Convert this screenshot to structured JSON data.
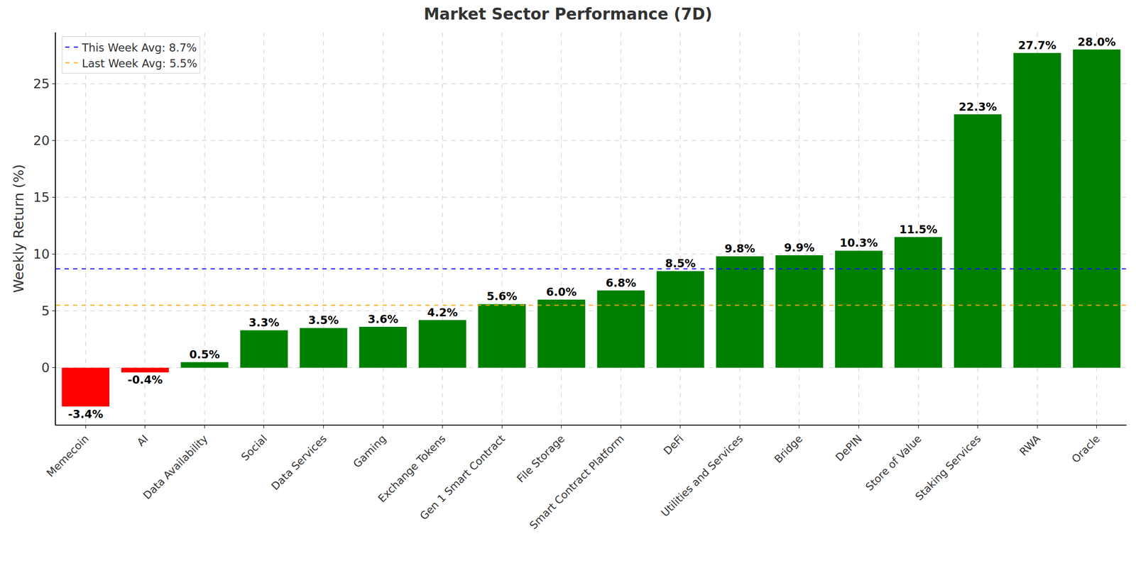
{
  "chart_data": {
    "type": "bar",
    "title": "Market Sector Performance (7D)",
    "y_label": "Weekly Return (%)",
    "categories": [
      "Memecoin",
      "AI",
      "Data Availability",
      "Social",
      "Data Services",
      "Gaming",
      "Exchange Tokens",
      "Gen 1 Smart Contract",
      "File Storage",
      "Smart Contract Platform",
      "DeFi",
      "Utilities and Services",
      "Bridge",
      "DePIN",
      "Store of Value",
      "Staking Services",
      "RWA",
      "Oracle"
    ],
    "values": [
      -3.4,
      -0.4,
      0.5,
      3.3,
      3.5,
      3.6,
      4.2,
      5.6,
      6.0,
      6.8,
      8.5,
      9.8,
      9.9,
      10.3,
      11.5,
      22.3,
      27.7,
      28.0
    ],
    "value_labels": [
      "-3.4%",
      "-0.4%",
      "0.5%",
      "3.3%",
      "3.5%",
      "3.6%",
      "4.2%",
      "5.6%",
      "6.0%",
      "6.8%",
      "8.5%",
      "9.8%",
      "9.9%",
      "10.3%",
      "11.5%",
      "22.3%",
      "27.7%",
      "28.0%"
    ],
    "colors": [
      "#ff0000",
      "#ff0000",
      "#008000",
      "#008000",
      "#008000",
      "#008000",
      "#008000",
      "#008000",
      "#008000",
      "#008000",
      "#008000",
      "#008000",
      "#008000",
      "#008000",
      "#008000",
      "#008000",
      "#008000",
      "#008000"
    ],
    "reference_lines": [
      {
        "name": "This Week Avg: 8.7%",
        "value": 8.7,
        "color": "#0000ff",
        "line_style": "dash"
      },
      {
        "name": "Last Week Avg: 5.5%",
        "value": 5.5,
        "color": "#ffa500",
        "line_style": "dash"
      }
    ],
    "ylim": [
      -5,
      29.5
    ],
    "yticks": [
      0,
      5,
      10,
      15,
      20,
      25
    ],
    "grid": true,
    "legend": "upper left",
    "data_labels": true
  }
}
